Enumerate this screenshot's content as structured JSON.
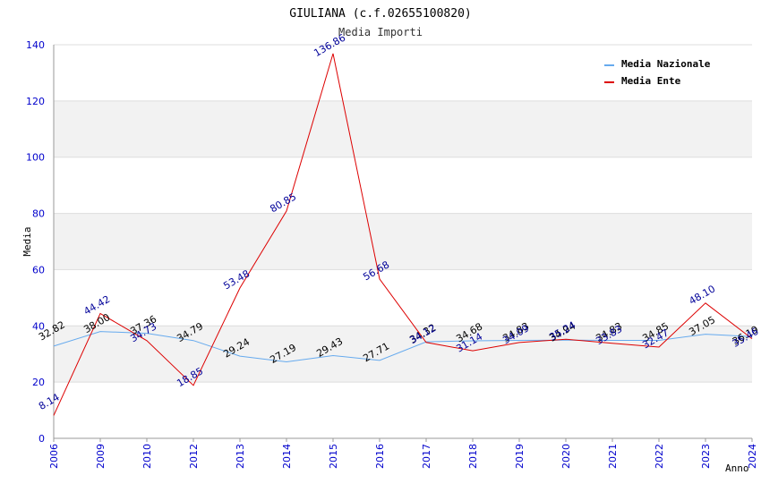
{
  "chart_data": {
    "type": "line",
    "title": "GIULIANA (c.f.02655100820)",
    "subtitle": "Media Importi",
    "xlabel": "Anno",
    "ylabel": "Media",
    "ylim": [
      0,
      140
    ],
    "yticks": [
      0,
      20,
      40,
      60,
      80,
      100,
      120,
      140
    ],
    "categories": [
      "2006",
      "2009",
      "2010",
      "2012",
      "2013",
      "2014",
      "2015",
      "2016",
      "2017",
      "2018",
      "2019",
      "2020",
      "2021",
      "2022",
      "2023",
      "2024"
    ],
    "grid": true,
    "legend_position": "top-right",
    "series": [
      {
        "name": "Media Nazionale",
        "color": "#66aaee",
        "label_color": "#000000",
        "values": [
          32.82,
          38.0,
          37.36,
          34.79,
          29.24,
          27.19,
          29.43,
          27.71,
          34.32,
          34.68,
          34.83,
          34.94,
          34.83,
          34.85,
          37.05,
          36.19
        ],
        "labels": [
          "32.82",
          "38.00",
          "37.36",
          "34.79",
          "29.24",
          "27.19",
          "29.43",
          "27.71",
          "34.32",
          "34.68",
          "34.83",
          "34.94",
          "34.83",
          "34.85",
          "37.05",
          "36.19"
        ]
      },
      {
        "name": "Media Ente",
        "color": "#dd0000",
        "label_color": "#000099",
        "values": [
          8.14,
          44.42,
          34.73,
          18.85,
          53.48,
          80.85,
          136.86,
          56.68,
          34.12,
          31.14,
          34.09,
          35.24,
          33.83,
          32.47,
          48.1,
          35.46
        ],
        "labels": [
          "8.14",
          "44.42",
          "34.73",
          "18.85",
          "53.48",
          "80.85",
          "136.86",
          "56.68",
          "34.12",
          "31.14",
          "34.09",
          "35.24",
          "33.83",
          "32.47",
          "48.10",
          "35.46"
        ]
      }
    ],
    "colors": {
      "band": "#f2f2f2",
      "gridline": "#dddddd",
      "axis": "#999999",
      "tick_text": "#0000cc"
    }
  }
}
